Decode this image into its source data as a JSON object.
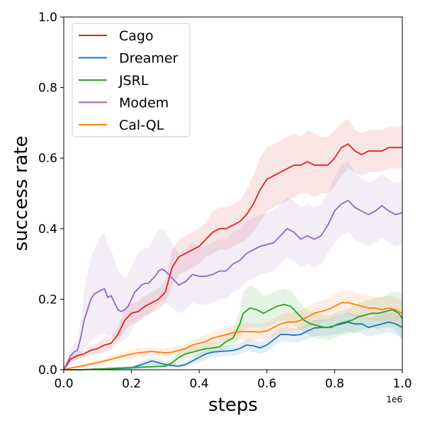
{
  "chart_data": {
    "type": "line",
    "xlabel": "steps",
    "ylabel": "success rate",
    "x_offset_label": "1e6",
    "xlim": [
      0,
      1.0
    ],
    "ylim": [
      0,
      1.0
    ],
    "x_ticks": [
      0.0,
      0.2,
      0.4,
      0.6,
      0.8,
      1.0
    ],
    "x_tick_labels": [
      "0.0",
      "0.2",
      "0.4",
      "0.6",
      "0.8",
      "1.0"
    ],
    "y_ticks": [
      0.0,
      0.2,
      0.4,
      0.6,
      0.8,
      1.0
    ],
    "y_tick_labels": [
      "0.0",
      "0.2",
      "0.4",
      "0.6",
      "0.8",
      "1.0"
    ],
    "grid": false,
    "legend_position": "top-left",
    "series": [
      {
        "name": "Cago",
        "color": "#d62728",
        "x": [
          0.0,
          0.02,
          0.04,
          0.06,
          0.08,
          0.1,
          0.12,
          0.14,
          0.16,
          0.18,
          0.2,
          0.22,
          0.24,
          0.26,
          0.28,
          0.3,
          0.32,
          0.34,
          0.36,
          0.38,
          0.4,
          0.42,
          0.44,
          0.46,
          0.48,
          0.5,
          0.52,
          0.54,
          0.56,
          0.58,
          0.6,
          0.62,
          0.64,
          0.66,
          0.68,
          0.7,
          0.72,
          0.74,
          0.76,
          0.78,
          0.8,
          0.82,
          0.84,
          0.86,
          0.88,
          0.9,
          0.92,
          0.94,
          0.96,
          0.98,
          1.0
        ],
        "values": [
          0.0,
          0.03,
          0.04,
          0.045,
          0.055,
          0.06,
          0.07,
          0.075,
          0.1,
          0.14,
          0.16,
          0.165,
          0.18,
          0.19,
          0.2,
          0.22,
          0.29,
          0.32,
          0.33,
          0.34,
          0.35,
          0.37,
          0.39,
          0.4,
          0.4,
          0.41,
          0.42,
          0.44,
          0.47,
          0.51,
          0.54,
          0.55,
          0.56,
          0.57,
          0.58,
          0.58,
          0.59,
          0.58,
          0.58,
          0.58,
          0.6,
          0.63,
          0.64,
          0.62,
          0.61,
          0.62,
          0.62,
          0.62,
          0.63,
          0.63,
          0.63
        ],
        "band_lower": [
          0.0,
          0.02,
          0.03,
          0.035,
          0.04,
          0.045,
          0.05,
          0.055,
          0.08,
          0.11,
          0.13,
          0.135,
          0.15,
          0.16,
          0.17,
          0.19,
          0.24,
          0.27,
          0.28,
          0.29,
          0.3,
          0.32,
          0.33,
          0.34,
          0.34,
          0.35,
          0.36,
          0.37,
          0.39,
          0.42,
          0.45,
          0.46,
          0.47,
          0.48,
          0.49,
          0.5,
          0.5,
          0.49,
          0.5,
          0.5,
          0.52,
          0.55,
          0.57,
          0.56,
          0.55,
          0.56,
          0.56,
          0.56,
          0.57,
          0.57,
          0.57
        ],
        "band_upper": [
          0.0,
          0.04,
          0.05,
          0.055,
          0.07,
          0.075,
          0.09,
          0.095,
          0.12,
          0.17,
          0.19,
          0.195,
          0.21,
          0.22,
          0.23,
          0.25,
          0.34,
          0.37,
          0.38,
          0.39,
          0.4,
          0.42,
          0.45,
          0.46,
          0.46,
          0.47,
          0.48,
          0.51,
          0.55,
          0.6,
          0.63,
          0.64,
          0.65,
          0.66,
          0.67,
          0.66,
          0.68,
          0.67,
          0.66,
          0.66,
          0.68,
          0.7,
          0.71,
          0.68,
          0.67,
          0.68,
          0.68,
          0.68,
          0.69,
          0.69,
          0.69
        ]
      },
      {
        "name": "Dreamer",
        "color": "#1f77b4",
        "x": [
          0.0,
          0.05,
          0.1,
          0.15,
          0.2,
          0.24,
          0.26,
          0.28,
          0.3,
          0.32,
          0.34,
          0.36,
          0.38,
          0.4,
          0.42,
          0.44,
          0.46,
          0.48,
          0.5,
          0.52,
          0.54,
          0.56,
          0.58,
          0.6,
          0.62,
          0.64,
          0.66,
          0.68,
          0.7,
          0.72,
          0.74,
          0.76,
          0.78,
          0.8,
          0.82,
          0.84,
          0.86,
          0.88,
          0.9,
          0.92,
          0.94,
          0.96,
          0.98,
          1.0
        ],
        "values": [
          0.0,
          0.0,
          0.002,
          0.003,
          0.005,
          0.018,
          0.025,
          0.02,
          0.015,
          0.012,
          0.01,
          0.015,
          0.025,
          0.035,
          0.045,
          0.05,
          0.052,
          0.053,
          0.055,
          0.06,
          0.07,
          0.068,
          0.062,
          0.07,
          0.085,
          0.1,
          0.1,
          0.098,
          0.1,
          0.11,
          0.118,
          0.12,
          0.12,
          0.125,
          0.13,
          0.135,
          0.13,
          0.13,
          0.12,
          0.125,
          0.13,
          0.135,
          0.13,
          0.12
        ],
        "band_lower": [
          0.0,
          0.0,
          0.0,
          0.0,
          0.0,
          0.008,
          0.012,
          0.01,
          0.007,
          0.005,
          0.004,
          0.007,
          0.015,
          0.022,
          0.03,
          0.035,
          0.037,
          0.038,
          0.04,
          0.044,
          0.052,
          0.05,
          0.045,
          0.052,
          0.065,
          0.08,
          0.08,
          0.078,
          0.08,
          0.088,
          0.095,
          0.097,
          0.097,
          0.1,
          0.104,
          0.108,
          0.104,
          0.104,
          0.094,
          0.098,
          0.102,
          0.106,
          0.1,
          0.09
        ],
        "band_upper": [
          0.0,
          0.0,
          0.005,
          0.007,
          0.01,
          0.028,
          0.038,
          0.03,
          0.023,
          0.019,
          0.016,
          0.023,
          0.035,
          0.048,
          0.06,
          0.065,
          0.067,
          0.068,
          0.07,
          0.076,
          0.088,
          0.086,
          0.079,
          0.088,
          0.105,
          0.12,
          0.12,
          0.118,
          0.12,
          0.132,
          0.141,
          0.143,
          0.143,
          0.15,
          0.156,
          0.162,
          0.156,
          0.156,
          0.146,
          0.152,
          0.158,
          0.164,
          0.16,
          0.15
        ]
      },
      {
        "name": "JSRL",
        "color": "#2ca02c",
        "x": [
          0.0,
          0.05,
          0.1,
          0.15,
          0.2,
          0.25,
          0.3,
          0.32,
          0.34,
          0.36,
          0.38,
          0.4,
          0.42,
          0.44,
          0.46,
          0.48,
          0.5,
          0.52,
          0.53,
          0.55,
          0.57,
          0.59,
          0.61,
          0.63,
          0.65,
          0.67,
          0.69,
          0.71,
          0.73,
          0.75,
          0.77,
          0.79,
          0.81,
          0.83,
          0.85,
          0.87,
          0.89,
          0.91,
          0.93,
          0.95,
          0.97,
          0.99,
          1.0
        ],
        "values": [
          0.0,
          0.0,
          0.002,
          0.004,
          0.006,
          0.008,
          0.01,
          0.02,
          0.035,
          0.045,
          0.05,
          0.055,
          0.06,
          0.062,
          0.065,
          0.08,
          0.09,
          0.13,
          0.16,
          0.175,
          0.17,
          0.16,
          0.17,
          0.18,
          0.185,
          0.18,
          0.16,
          0.14,
          0.13,
          0.125,
          0.12,
          0.12,
          0.13,
          0.135,
          0.14,
          0.15,
          0.155,
          0.16,
          0.16,
          0.165,
          0.17,
          0.16,
          0.145
        ],
        "band_lower": [
          0.0,
          0.0,
          0.0,
          0.0,
          0.001,
          0.002,
          0.003,
          0.01,
          0.02,
          0.03,
          0.035,
          0.04,
          0.045,
          0.047,
          0.05,
          0.06,
          0.07,
          0.09,
          0.11,
          0.12,
          0.12,
          0.115,
          0.125,
          0.135,
          0.14,
          0.135,
          0.12,
          0.105,
          0.095,
          0.09,
          0.085,
          0.085,
          0.095,
          0.1,
          0.105,
          0.11,
          0.115,
          0.12,
          0.115,
          0.12,
          0.12,
          0.1,
          0.08
        ],
        "band_upper": [
          0.0,
          0.0,
          0.005,
          0.008,
          0.012,
          0.015,
          0.018,
          0.03,
          0.05,
          0.06,
          0.065,
          0.07,
          0.075,
          0.078,
          0.08,
          0.1,
          0.11,
          0.17,
          0.22,
          0.24,
          0.23,
          0.21,
          0.215,
          0.225,
          0.23,
          0.225,
          0.2,
          0.175,
          0.165,
          0.16,
          0.155,
          0.155,
          0.165,
          0.17,
          0.175,
          0.19,
          0.195,
          0.2,
          0.205,
          0.21,
          0.22,
          0.22,
          0.21
        ]
      },
      {
        "name": "Modem",
        "color": "#9467bd",
        "x": [
          0.0,
          0.01,
          0.02,
          0.03,
          0.04,
          0.05,
          0.06,
          0.07,
          0.08,
          0.09,
          0.1,
          0.11,
          0.12,
          0.13,
          0.14,
          0.15,
          0.16,
          0.17,
          0.18,
          0.19,
          0.2,
          0.21,
          0.22,
          0.23,
          0.24,
          0.25,
          0.26,
          0.27,
          0.28,
          0.29,
          0.3,
          0.32,
          0.34,
          0.36,
          0.38,
          0.4,
          0.42,
          0.44,
          0.46,
          0.48,
          0.5,
          0.52,
          0.54,
          0.56,
          0.58,
          0.6,
          0.62,
          0.64,
          0.66,
          0.68,
          0.7,
          0.72,
          0.74,
          0.76,
          0.78,
          0.8,
          0.82,
          0.84,
          0.86,
          0.88,
          0.9,
          0.92,
          0.94,
          0.96,
          0.98,
          1.0
        ],
        "values": [
          0.0,
          0.02,
          0.04,
          0.05,
          0.055,
          0.09,
          0.14,
          0.17,
          0.2,
          0.215,
          0.22,
          0.225,
          0.23,
          0.205,
          0.21,
          0.19,
          0.17,
          0.165,
          0.17,
          0.18,
          0.2,
          0.22,
          0.23,
          0.24,
          0.245,
          0.245,
          0.255,
          0.265,
          0.28,
          0.285,
          0.28,
          0.26,
          0.24,
          0.25,
          0.27,
          0.265,
          0.265,
          0.27,
          0.28,
          0.28,
          0.3,
          0.31,
          0.33,
          0.34,
          0.35,
          0.355,
          0.36,
          0.38,
          0.4,
          0.39,
          0.37,
          0.38,
          0.37,
          0.38,
          0.41,
          0.45,
          0.47,
          0.48,
          0.46,
          0.45,
          0.44,
          0.45,
          0.465,
          0.45,
          0.44,
          0.445
        ],
        "band_lower": [
          0.0,
          0.01,
          0.02,
          0.025,
          0.03,
          0.04,
          0.06,
          0.07,
          0.08,
          0.09,
          0.1,
          0.1,
          0.105,
          0.095,
          0.1,
          0.09,
          0.08,
          0.08,
          0.085,
          0.095,
          0.11,
          0.13,
          0.14,
          0.15,
          0.155,
          0.155,
          0.165,
          0.175,
          0.19,
          0.195,
          0.19,
          0.175,
          0.16,
          0.17,
          0.19,
          0.185,
          0.185,
          0.19,
          0.2,
          0.2,
          0.22,
          0.23,
          0.25,
          0.26,
          0.27,
          0.275,
          0.28,
          0.3,
          0.32,
          0.31,
          0.29,
          0.3,
          0.29,
          0.3,
          0.33,
          0.36,
          0.38,
          0.39,
          0.37,
          0.36,
          0.35,
          0.36,
          0.375,
          0.36,
          0.35,
          0.355
        ],
        "band_upper": [
          0.0,
          0.03,
          0.06,
          0.075,
          0.08,
          0.14,
          0.22,
          0.27,
          0.32,
          0.34,
          0.36,
          0.38,
          0.39,
          0.35,
          0.34,
          0.31,
          0.28,
          0.27,
          0.26,
          0.27,
          0.29,
          0.31,
          0.33,
          0.34,
          0.345,
          0.345,
          0.36,
          0.38,
          0.4,
          0.4,
          0.39,
          0.36,
          0.33,
          0.34,
          0.36,
          0.35,
          0.35,
          0.36,
          0.37,
          0.37,
          0.39,
          0.4,
          0.42,
          0.43,
          0.44,
          0.445,
          0.45,
          0.47,
          0.49,
          0.48,
          0.46,
          0.47,
          0.46,
          0.47,
          0.5,
          0.55,
          0.58,
          0.59,
          0.56,
          0.54,
          0.53,
          0.54,
          0.555,
          0.54,
          0.53,
          0.535
        ]
      },
      {
        "name": "Cal-QL",
        "color": "#ff7f0e",
        "x": [
          0.0,
          0.02,
          0.04,
          0.06,
          0.08,
          0.1,
          0.12,
          0.14,
          0.16,
          0.18,
          0.2,
          0.22,
          0.24,
          0.26,
          0.28,
          0.3,
          0.32,
          0.34,
          0.36,
          0.38,
          0.4,
          0.42,
          0.44,
          0.46,
          0.48,
          0.5,
          0.52,
          0.54,
          0.56,
          0.58,
          0.6,
          0.62,
          0.64,
          0.66,
          0.68,
          0.7,
          0.72,
          0.74,
          0.76,
          0.78,
          0.8,
          0.82,
          0.84,
          0.86,
          0.88,
          0.9,
          0.92,
          0.94,
          0.96,
          0.98,
          1.0
        ],
        "values": [
          0.0,
          0.005,
          0.008,
          0.012,
          0.016,
          0.02,
          0.025,
          0.03,
          0.035,
          0.04,
          0.045,
          0.048,
          0.05,
          0.052,
          0.05,
          0.048,
          0.05,
          0.055,
          0.06,
          0.07,
          0.075,
          0.08,
          0.09,
          0.095,
          0.1,
          0.105,
          0.108,
          0.108,
          0.108,
          0.107,
          0.11,
          0.12,
          0.13,
          0.135,
          0.135,
          0.14,
          0.15,
          0.16,
          0.165,
          0.17,
          0.18,
          0.19,
          0.19,
          0.185,
          0.18,
          0.175,
          0.175,
          0.17,
          0.175,
          0.17,
          0.16
        ],
        "band_lower": [
          0.0,
          0.002,
          0.004,
          0.007,
          0.01,
          0.013,
          0.017,
          0.021,
          0.025,
          0.029,
          0.033,
          0.036,
          0.038,
          0.04,
          0.038,
          0.036,
          0.037,
          0.041,
          0.045,
          0.054,
          0.058,
          0.062,
          0.071,
          0.075,
          0.079,
          0.083,
          0.085,
          0.085,
          0.085,
          0.084,
          0.086,
          0.095,
          0.104,
          0.108,
          0.108,
          0.112,
          0.121,
          0.13,
          0.134,
          0.138,
          0.147,
          0.156,
          0.156,
          0.151,
          0.146,
          0.141,
          0.141,
          0.136,
          0.14,
          0.135,
          0.125
        ],
        "band_upper": [
          0.0,
          0.008,
          0.012,
          0.017,
          0.022,
          0.027,
          0.033,
          0.039,
          0.045,
          0.051,
          0.057,
          0.06,
          0.062,
          0.064,
          0.062,
          0.06,
          0.063,
          0.069,
          0.075,
          0.086,
          0.092,
          0.098,
          0.109,
          0.115,
          0.121,
          0.127,
          0.131,
          0.131,
          0.131,
          0.13,
          0.134,
          0.145,
          0.156,
          0.162,
          0.162,
          0.168,
          0.179,
          0.19,
          0.196,
          0.202,
          0.213,
          0.224,
          0.224,
          0.219,
          0.214,
          0.209,
          0.209,
          0.204,
          0.21,
          0.205,
          0.195
        ]
      }
    ]
  }
}
